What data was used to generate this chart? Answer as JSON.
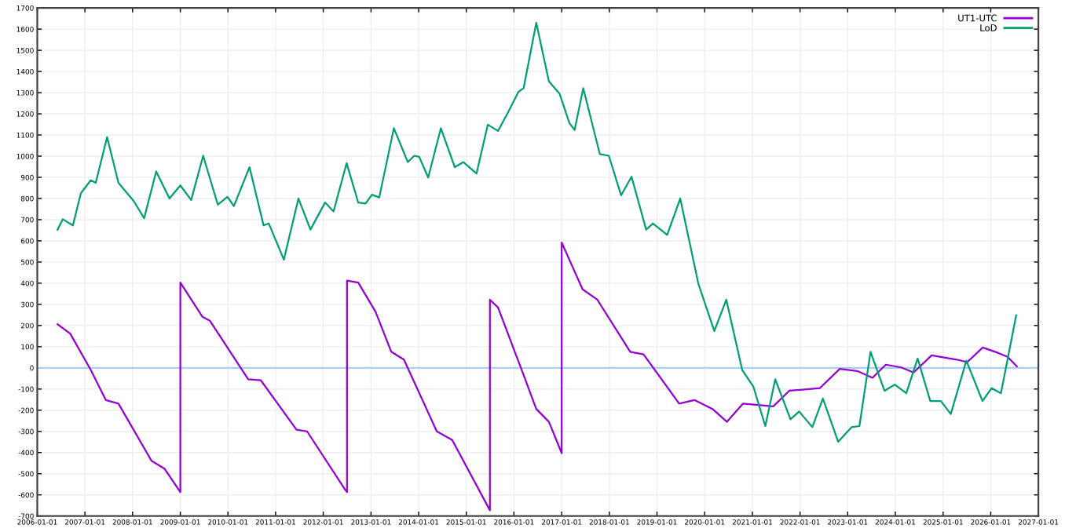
{
  "chart_data": {
    "type": "line",
    "xlim": [
      "2006-01-01",
      "2027-01-01"
    ],
    "ylim": [
      -700,
      1700
    ],
    "xticks": [
      "2006-01-01",
      "2007-01-01",
      "2008-01-01",
      "2009-01-01",
      "2010-01-01",
      "2011-01-01",
      "2012-01-01",
      "2013-01-01",
      "2014-01-01",
      "2015-01-01",
      "2016-01-01",
      "2017-01-01",
      "2018-01-01",
      "2019-01-01",
      "2020-01-01",
      "2021-01-01",
      "2022-01-01",
      "2023-01-01",
      "2024-01-01",
      "2025-01-01",
      "2026-01-01",
      "2027-01-01"
    ],
    "yticks": [
      -700,
      -600,
      -500,
      -400,
      -300,
      -200,
      -100,
      0,
      100,
      200,
      300,
      400,
      500,
      600,
      700,
      800,
      900,
      1000,
      1100,
      1200,
      1300,
      1400,
      1500,
      1600,
      1700
    ],
    "grid": true,
    "legend": "top right",
    "marker": "none",
    "line_style": "solid",
    "ref_lines": [
      {
        "axis": "y",
        "value": 0,
        "color": "#a8cff0"
      }
    ],
    "series": [
      {
        "name": "UT1-UTC",
        "color": "#9400d3",
        "x": [
          "2006-06-05",
          "2006-09-10",
          "2007-02-15",
          "2007-06-10",
          "2007-09-15",
          "2008-05-25",
          "2008-09-01",
          "2009-01-01",
          "2009-01-01",
          "2009-06-20",
          "2009-08-15",
          "2010-06-05",
          "2010-09-10",
          "2011-06-10",
          "2011-08-30",
          "2012-06-15",
          "2012-07-01",
          "2012-07-01",
          "2012-09-25",
          "2013-02-05",
          "2013-06-05",
          "2013-09-10",
          "2014-05-20",
          "2014-09-15",
          "2015-07-01",
          "2015-07-01",
          "2015-09-01",
          "2016-03-15",
          "2016-06-20",
          "2016-09-25",
          "2017-01-01",
          "2017-01-01",
          "2017-06-10",
          "2017-10-01",
          "2018-06-10",
          "2018-09-20",
          "2019-06-20",
          "2019-10-15",
          "2020-03-01",
          "2020-06-20",
          "2020-10-20",
          "2021-06-10",
          "2021-10-10",
          "2022-06-01",
          "2022-11-01",
          "2023-03-15",
          "2023-07-10",
          "2023-10-20",
          "2024-02-15",
          "2024-05-20",
          "2024-10-05",
          "2025-04-15",
          "2025-07-05",
          "2025-11-01",
          "2026-02-25",
          "2026-05-10",
          "2026-07-20"
        ],
        "values": [
          206,
          162,
          -10,
          -152,
          -169,
          -439,
          -476,
          -587,
          403,
          241,
          223,
          -54,
          -59,
          -292,
          -300,
          -574,
          -587,
          412,
          403,
          265,
          76,
          39,
          -300,
          -341,
          -673,
          322,
          285,
          -34,
          -194,
          -255,
          -403,
          592,
          371,
          322,
          76,
          64,
          -169,
          -152,
          -194,
          -255,
          -169,
          -182,
          -108,
          -96,
          -5,
          -15,
          -47,
          15,
          2,
          -22,
          59,
          39,
          27,
          96,
          71,
          52,
          7
        ]
      },
      {
        "name": "LoD",
        "color": "#009e73",
        "x": [
          "2006-06-05",
          "2006-07-15",
          "2006-10-01",
          "2006-12-01",
          "2007-02-15",
          "2007-03-25",
          "2007-06-20",
          "2007-09-15",
          "2008-01-10",
          "2008-03-30",
          "2008-06-30",
          "2008-10-10",
          "2009-01-01",
          "2009-03-25",
          "2009-06-25",
          "2009-10-15",
          "2009-12-28",
          "2010-02-15",
          "2010-06-15",
          "2010-10-01",
          "2010-11-10",
          "2011-03-05",
          "2011-06-25",
          "2011-09-25",
          "2012-01-15",
          "2012-03-20",
          "2012-06-28",
          "2012-09-25",
          "2012-11-20",
          "2013-01-08",
          "2013-03-05",
          "2013-06-25",
          "2013-10-10",
          "2013-11-28",
          "2014-01-05",
          "2014-03-15",
          "2014-06-20",
          "2014-10-05",
          "2014-12-10",
          "2015-03-20",
          "2015-06-15",
          "2015-09-01",
          "2015-11-15",
          "2016-02-05",
          "2016-03-15",
          "2016-06-20",
          "2016-09-25",
          "2016-12-15",
          "2017-03-01",
          "2017-04-10",
          "2017-06-15",
          "2017-10-20",
          "2017-12-28",
          "2018-04-01",
          "2018-06-20",
          "2018-10-10",
          "2018-12-01",
          "2019-03-20",
          "2019-06-28",
          "2019-11-15",
          "2020-03-15",
          "2020-06-15",
          "2020-10-15",
          "2021-01-08",
          "2021-04-10",
          "2021-06-25",
          "2021-10-20",
          "2021-12-25",
          "2022-04-05",
          "2022-06-25",
          "2022-10-20",
          "2023-02-01",
          "2023-04-01",
          "2023-06-25",
          "2023-10-10",
          "2023-12-28",
          "2024-03-25",
          "2024-06-20",
          "2024-09-25",
          "2024-12-15",
          "2025-03-01",
          "2025-06-28",
          "2025-10-30",
          "2026-01-08",
          "2026-03-20",
          "2026-07-15"
        ],
        "values": [
          653,
          702,
          673,
          825,
          886,
          874,
          1090,
          874,
          788,
          707,
          928,
          800,
          862,
          793,
          1002,
          771,
          808,
          764,
          948,
          673,
          682,
          511,
          800,
          653,
          781,
          739,
          967,
          781,
          776,
          818,
          805,
          1132,
          972,
          1002,
          997,
          899,
          1132,
          948,
          972,
          918,
          1149,
          1119,
          1205,
          1304,
          1321,
          1630,
          1353,
          1296,
          1156,
          1124,
          1321,
          1010,
          1002,
          815,
          903,
          653,
          682,
          628,
          800,
          395,
          174,
          322,
          -10,
          -88,
          -275,
          -54,
          -243,
          -206,
          -280,
          -145,
          -349,
          -280,
          -275,
          76,
          -108,
          -79,
          -120,
          44,
          -157,
          -157,
          -218,
          34,
          -157,
          -96,
          -120,
          248
        ]
      }
    ]
  }
}
